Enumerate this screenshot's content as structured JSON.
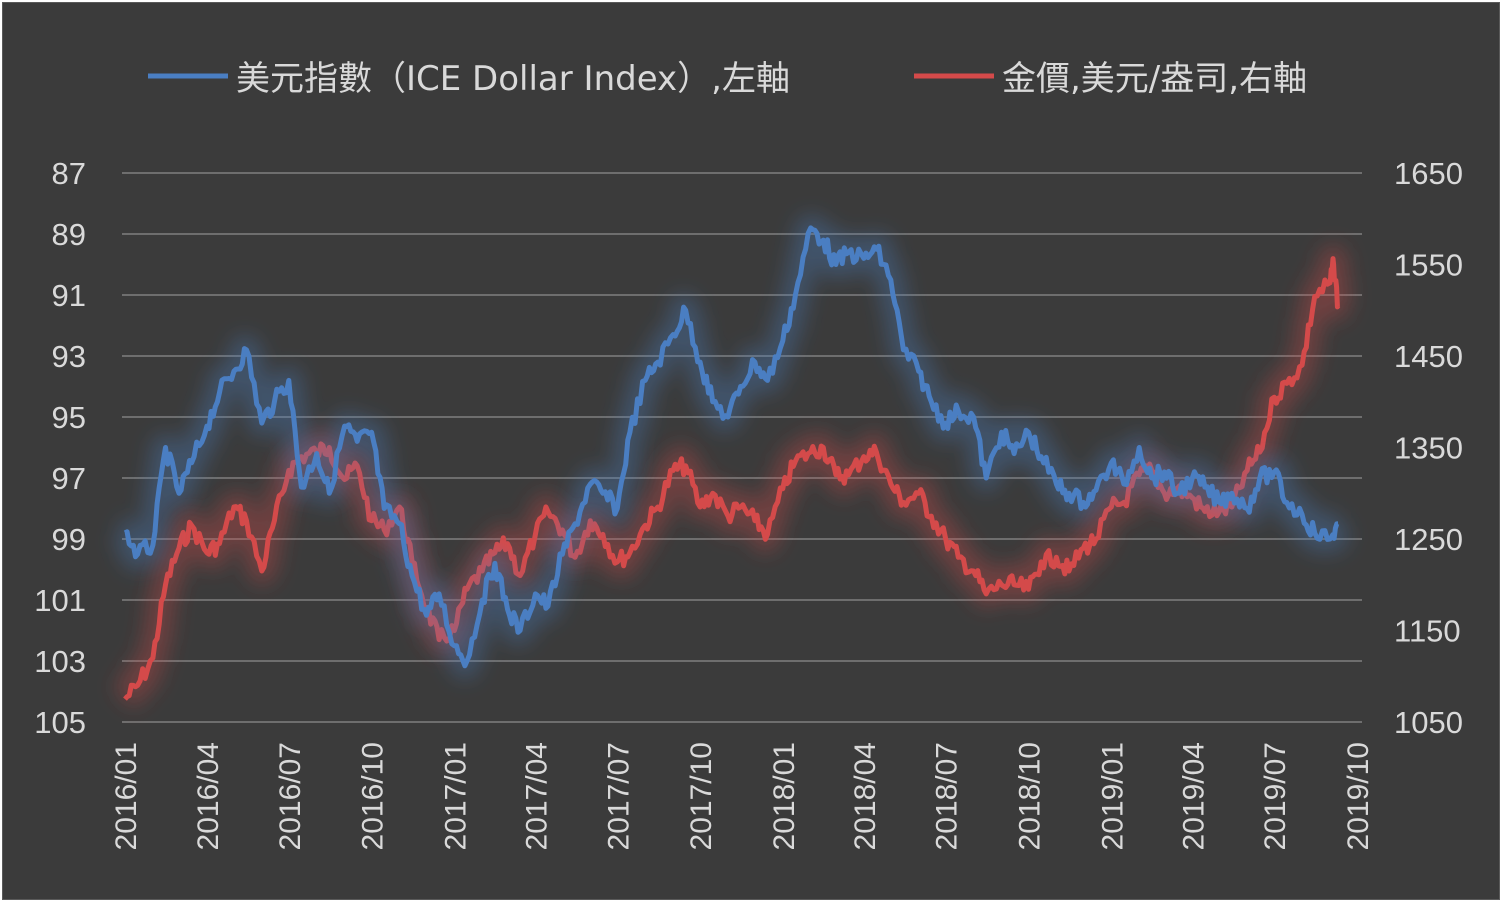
{
  "chart_data": {
    "type": "line",
    "legend": {
      "placement": "top",
      "entries": [
        {
          "name": "美元指數（ICE Dollar Index）,左軸",
          "color": "#4a7ec2"
        },
        {
          "name": "金價,美元/盎司,右軸",
          "color": "#d44a4a"
        }
      ]
    },
    "y_left": {
      "ticks": [
        "87",
        "89",
        "91",
        "93",
        "95",
        "97",
        "99",
        "101",
        "103",
        "105"
      ],
      "range": [
        87,
        105
      ],
      "inverted": true
    },
    "y_right": {
      "ticks": [
        "1650",
        "1550",
        "1450",
        "1350",
        "1250",
        "1150",
        "1050"
      ],
      "range": [
        1050,
        1650
      ]
    },
    "x_ticks": [
      "2016/01",
      "2016/04",
      "2016/07",
      "2016/10",
      "2017/01",
      "2017/04",
      "2017/07",
      "2017/10",
      "2018/01",
      "2018/04",
      "2018/07",
      "2018/10",
      "2019/01",
      "2019/04",
      "2019/07",
      "2019/10"
    ],
    "grid": true,
    "series": [
      {
        "name": "美元指數（ICE Dollar Index）,左軸",
        "axis": "left",
        "color": "#4a7ec2",
        "points": [
          [
            "2016/01/01",
            98.8
          ],
          [
            "2016/01/15",
            99.5
          ],
          [
            "2016/02/01",
            99.2
          ],
          [
            "2016/02/15",
            96.0
          ],
          [
            "2016/03/01",
            97.5
          ],
          [
            "2016/03/15",
            96.5
          ],
          [
            "2016/04/01",
            95.3
          ],
          [
            "2016/04/15",
            94.2
          ],
          [
            "2016/05/01",
            93.5
          ],
          [
            "2016/05/15",
            92.8
          ],
          [
            "2016/06/01",
            95.2
          ],
          [
            "2016/06/15",
            94.5
          ],
          [
            "2016/07/01",
            93.8
          ],
          [
            "2016/07/15",
            97.3
          ],
          [
            "2016/08/01",
            96.2
          ],
          [
            "2016/08/15",
            97.5
          ],
          [
            "2016/09/01",
            95.3
          ],
          [
            "2016/09/15",
            95.8
          ],
          [
            "2016/10/01",
            95.5
          ],
          [
            "2016/10/15",
            98.0
          ],
          [
            "2016/11/01",
            98.5
          ],
          [
            "2016/11/15",
            100.2
          ],
          [
            "2016/12/01",
            101.5
          ],
          [
            "2016/12/15",
            100.8
          ],
          [
            "2017/01/01",
            102.5
          ],
          [
            "2017/01/15",
            103.0
          ],
          [
            "2017/02/01",
            101.0
          ],
          [
            "2017/02/15",
            99.8
          ],
          [
            "2017/03/01",
            101.3
          ],
          [
            "2017/03/15",
            102.0
          ],
          [
            "2017/04/01",
            100.8
          ],
          [
            "2017/04/15",
            101.2
          ],
          [
            "2017/05/01",
            99.5
          ],
          [
            "2017/05/15",
            98.5
          ],
          [
            "2017/06/01",
            97.2
          ],
          [
            "2017/06/15",
            97.5
          ],
          [
            "2017/07/01",
            98.0
          ],
          [
            "2017/07/15",
            95.5
          ],
          [
            "2017/08/01",
            93.8
          ],
          [
            "2017/08/15",
            93.2
          ],
          [
            "2017/09/01",
            92.3
          ],
          [
            "2017/09/15",
            91.5
          ],
          [
            "2017/10/01",
            93.2
          ],
          [
            "2017/10/15",
            94.5
          ],
          [
            "2017/11/01",
            95.0
          ],
          [
            "2017/11/15",
            94.0
          ],
          [
            "2017/12/01",
            93.2
          ],
          [
            "2017/12/15",
            93.8
          ],
          [
            "2018/01/01",
            92.5
          ],
          [
            "2018/01/15",
            91.0
          ],
          [
            "2018/02/01",
            88.8
          ],
          [
            "2018/02/15",
            89.2
          ],
          [
            "2018/03/01",
            90.0
          ],
          [
            "2018/03/15",
            89.6
          ],
          [
            "2018/04/01",
            89.8
          ],
          [
            "2018/04/15",
            89.5
          ],
          [
            "2018/05/01",
            90.5
          ],
          [
            "2018/05/15",
            92.8
          ],
          [
            "2018/06/01",
            93.5
          ],
          [
            "2018/06/15",
            94.5
          ],
          [
            "2018/07/01",
            95.2
          ],
          [
            "2018/07/15",
            94.8
          ],
          [
            "2018/08/01",
            95.0
          ],
          [
            "2018/08/15",
            97.0
          ],
          [
            "2018/09/01",
            95.5
          ],
          [
            "2018/09/15",
            96.2
          ],
          [
            "2018/10/01",
            95.5
          ],
          [
            "2018/10/15",
            96.3
          ],
          [
            "2018/11/01",
            97.2
          ],
          [
            "2018/11/15",
            97.5
          ],
          [
            "2018/12/01",
            97.8
          ],
          [
            "2018/12/15",
            97.4
          ],
          [
            "2019/01/01",
            96.5
          ],
          [
            "2019/01/15",
            97.2
          ],
          [
            "2019/02/01",
            96.0
          ],
          [
            "2019/02/15",
            97.0
          ],
          [
            "2019/03/01",
            96.8
          ],
          [
            "2019/03/15",
            97.5
          ],
          [
            "2019/04/01",
            97.0
          ],
          [
            "2019/04/15",
            97.3
          ],
          [
            "2019/05/01",
            97.8
          ],
          [
            "2019/05/15",
            97.5
          ],
          [
            "2019/06/01",
            98.0
          ],
          [
            "2019/06/15",
            97.0
          ],
          [
            "2019/07/01",
            96.8
          ],
          [
            "2019/07/15",
            97.8
          ],
          [
            "2019/08/01",
            98.2
          ],
          [
            "2019/08/15",
            98.8
          ],
          [
            "2019/09/01",
            99.0
          ],
          [
            "2019/09/10",
            98.5
          ]
        ]
      },
      {
        "name": "金價,美元/盎司,右軸",
        "axis": "right",
        "color": "#d44a4a",
        "points": [
          [
            "2016/01/01",
            1075
          ],
          [
            "2016/01/15",
            1090
          ],
          [
            "2016/02/01",
            1120
          ],
          [
            "2016/02/15",
            1200
          ],
          [
            "2016/03/01",
            1240
          ],
          [
            "2016/03/15",
            1265
          ],
          [
            "2016/04/01",
            1235
          ],
          [
            "2016/04/15",
            1245
          ],
          [
            "2016/05/01",
            1285
          ],
          [
            "2016/05/15",
            1270
          ],
          [
            "2016/06/01",
            1215
          ],
          [
            "2016/06/15",
            1270
          ],
          [
            "2016/07/01",
            1325
          ],
          [
            "2016/07/15",
            1340
          ],
          [
            "2016/08/01",
            1345
          ],
          [
            "2016/08/15",
            1350
          ],
          [
            "2016/09/01",
            1315
          ],
          [
            "2016/09/15",
            1330
          ],
          [
            "2016/10/01",
            1270
          ],
          [
            "2016/10/15",
            1260
          ],
          [
            "2016/11/01",
            1285
          ],
          [
            "2016/11/15",
            1225
          ],
          [
            "2016/12/01",
            1175
          ],
          [
            "2016/12/15",
            1140
          ],
          [
            "2017/01/01",
            1150
          ],
          [
            "2017/01/15",
            1195
          ],
          [
            "2017/02/01",
            1215
          ],
          [
            "2017/02/15",
            1235
          ],
          [
            "2017/03/01",
            1245
          ],
          [
            "2017/03/15",
            1210
          ],
          [
            "2017/04/01",
            1255
          ],
          [
            "2017/04/15",
            1280
          ],
          [
            "2017/05/01",
            1260
          ],
          [
            "2017/05/15",
            1230
          ],
          [
            "2017/06/01",
            1270
          ],
          [
            "2017/06/15",
            1255
          ],
          [
            "2017/07/01",
            1225
          ],
          [
            "2017/07/15",
            1235
          ],
          [
            "2017/08/01",
            1265
          ],
          [
            "2017/08/15",
            1285
          ],
          [
            "2017/09/01",
            1325
          ],
          [
            "2017/09/15",
            1330
          ],
          [
            "2017/10/01",
            1285
          ],
          [
            "2017/10/15",
            1300
          ],
          [
            "2017/11/01",
            1275
          ],
          [
            "2017/11/15",
            1285
          ],
          [
            "2017/12/01",
            1270
          ],
          [
            "2017/12/15",
            1255
          ],
          [
            "2018/01/01",
            1305
          ],
          [
            "2018/01/15",
            1335
          ],
          [
            "2018/02/01",
            1345
          ],
          [
            "2018/02/15",
            1350
          ],
          [
            "2018/03/01",
            1320
          ],
          [
            "2018/03/15",
            1320
          ],
          [
            "2018/04/01",
            1340
          ],
          [
            "2018/04/15",
            1345
          ],
          [
            "2018/05/01",
            1310
          ],
          [
            "2018/05/15",
            1290
          ],
          [
            "2018/06/01",
            1300
          ],
          [
            "2018/06/15",
            1275
          ],
          [
            "2018/07/01",
            1250
          ],
          [
            "2018/07/15",
            1230
          ],
          [
            "2018/08/01",
            1215
          ],
          [
            "2018/08/15",
            1190
          ],
          [
            "2018/09/01",
            1200
          ],
          [
            "2018/09/15",
            1200
          ],
          [
            "2018/10/01",
            1195
          ],
          [
            "2018/10/15",
            1225
          ],
          [
            "2018/11/01",
            1230
          ],
          [
            "2018/11/15",
            1215
          ],
          [
            "2018/12/01",
            1240
          ],
          [
            "2018/12/15",
            1250
          ],
          [
            "2019/01/01",
            1285
          ],
          [
            "2019/01/15",
            1290
          ],
          [
            "2019/02/01",
            1320
          ],
          [
            "2019/02/15",
            1325
          ],
          [
            "2019/03/01",
            1300
          ],
          [
            "2019/03/15",
            1305
          ],
          [
            "2019/04/01",
            1295
          ],
          [
            "2019/04/15",
            1280
          ],
          [
            "2019/05/01",
            1280
          ],
          [
            "2019/05/15",
            1285
          ],
          [
            "2019/06/01",
            1325
          ],
          [
            "2019/06/15",
            1345
          ],
          [
            "2019/07/01",
            1405
          ],
          [
            "2019/07/15",
            1420
          ],
          [
            "2019/08/01",
            1440
          ],
          [
            "2019/08/15",
            1515
          ],
          [
            "2019/09/01",
            1530
          ],
          [
            "2019/09/05",
            1550
          ],
          [
            "2019/09/10",
            1505
          ]
        ]
      }
    ]
  }
}
